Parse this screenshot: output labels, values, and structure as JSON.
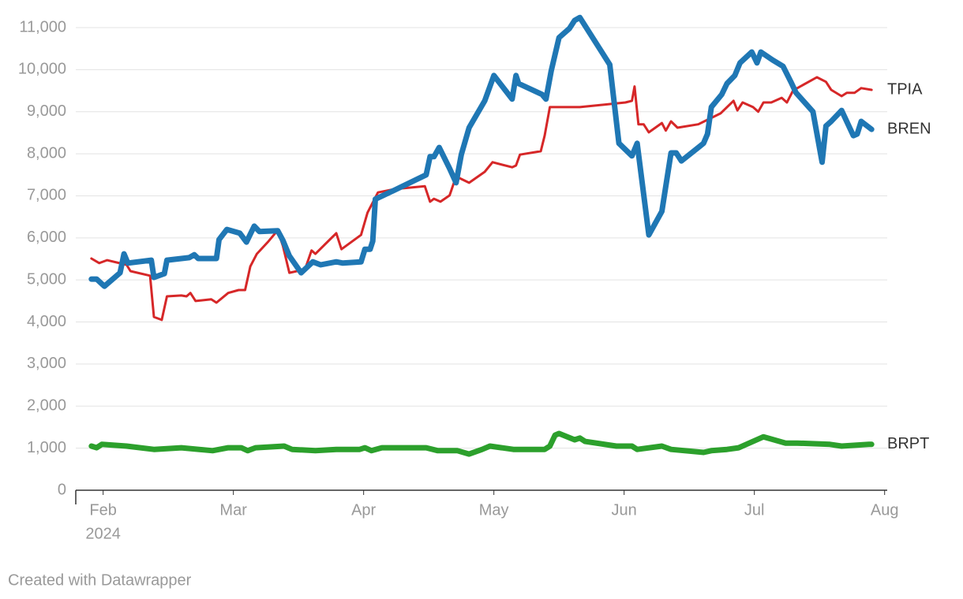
{
  "chart_data": {
    "type": "line",
    "xlim": [
      1.79,
      8.02
    ],
    "xticks": [
      {
        "value": 2,
        "label": "Feb"
      },
      {
        "value": 3,
        "label": "Mar"
      },
      {
        "value": 4,
        "label": "Apr"
      },
      {
        "value": 5,
        "label": "May"
      },
      {
        "value": 6,
        "label": "Jun"
      },
      {
        "value": 7,
        "label": "Jul"
      },
      {
        "value": 8,
        "label": "Aug"
      }
    ],
    "x_sublabel": "2024",
    "ylim": [
      0,
      11000
    ],
    "yticks": [
      0,
      {
        "value": 1000,
        "label": "1,000"
      },
      {
        "value": 2000,
        "label": "2,000"
      },
      {
        "value": 3000,
        "label": "3,000"
      },
      {
        "value": 4000,
        "label": "4,000"
      },
      {
        "value": 5000,
        "label": "5,000"
      },
      {
        "value": 6000,
        "label": "6,000"
      },
      {
        "value": 7000,
        "label": "7,000"
      },
      {
        "value": 8000,
        "label": "8,000"
      },
      {
        "value": 9000,
        "label": "9,000"
      },
      {
        "value": 10000,
        "label": "10,000"
      },
      {
        "value": 11000,
        "label": "11,000"
      }
    ],
    "grid": true,
    "footer": "Created with Datawrapper",
    "series": [
      {
        "name": "TPIA",
        "color": "#d62728",
        "width": 3,
        "x": [
          1.91,
          1.97,
          2.03,
          2.18,
          2.21,
          2.36,
          2.39,
          2.45,
          2.49,
          2.6,
          2.64,
          2.67,
          2.71,
          2.83,
          2.87,
          2.96,
          3.04,
          3.09,
          3.13,
          3.18,
          3.27,
          3.34,
          3.38,
          3.43,
          3.55,
          3.6,
          3.63,
          3.74,
          3.79,
          3.83,
          3.98,
          4.03,
          4.11,
          4.24,
          4.47,
          4.51,
          4.54,
          4.59,
          4.66,
          4.71,
          4.81,
          4.93,
          4.99,
          5.14,
          5.17,
          5.2,
          5.36,
          5.39,
          5.43,
          5.5,
          5.66,
          6.01,
          6.06,
          6.08,
          6.11,
          6.15,
          6.19,
          6.29,
          6.32,
          6.36,
          6.41,
          6.57,
          6.74,
          6.84,
          6.87,
          6.91,
          6.99,
          7.03,
          7.07,
          7.13,
          7.21,
          7.25,
          7.3,
          7.33,
          7.44,
          7.48,
          7.55,
          7.59,
          7.67,
          7.71,
          7.77,
          7.82,
          7.9
        ],
        "values": [
          5510,
          5400,
          5470,
          5360,
          5210,
          5100,
          4120,
          4050,
          4610,
          4630,
          4610,
          4690,
          4500,
          4540,
          4460,
          4690,
          4760,
          4760,
          5320,
          5620,
          5920,
          6180,
          5810,
          5170,
          5250,
          5700,
          5620,
          5960,
          6110,
          5730,
          6070,
          6600,
          7080,
          7160,
          7230,
          6860,
          6930,
          6860,
          7010,
          7460,
          7310,
          7570,
          7800,
          7680,
          7720,
          7980,
          8060,
          8430,
          9110,
          9110,
          9110,
          9220,
          9260,
          9600,
          8700,
          8700,
          8510,
          8730,
          8550,
          8770,
          8620,
          8700,
          8960,
          9260,
          9030,
          9220,
          9110,
          9000,
          9220,
          9220,
          9330,
          9220,
          9520,
          9560,
          9750,
          9820,
          9710,
          9520,
          9370,
          9450,
          9450,
          9560,
          9520
        ]
      },
      {
        "name": "BREN",
        "color": "#1f77b4",
        "width": 7,
        "x": [
          1.91,
          1.95,
          2.01,
          2.13,
          2.16,
          2.19,
          2.37,
          2.39,
          2.47,
          2.49,
          2.66,
          2.7,
          2.73,
          2.87,
          2.89,
          2.95,
          3.05,
          3.1,
          3.16,
          3.2,
          3.34,
          3.38,
          3.43,
          3.52,
          3.61,
          3.67,
          3.79,
          3.84,
          3.98,
          4.01,
          4.05,
          4.07,
          4.09,
          4.24,
          4.48,
          4.51,
          4.54,
          4.58,
          4.66,
          4.71,
          4.75,
          4.81,
          4.93,
          5.0,
          5.14,
          5.17,
          5.19,
          5.37,
          5.4,
          5.44,
          5.5,
          5.58,
          5.62,
          5.66,
          5.89,
          5.96,
          6.06,
          6.1,
          6.19,
          6.29,
          6.36,
          6.4,
          6.44,
          6.61,
          6.64,
          6.67,
          6.75,
          6.79,
          6.85,
          6.89,
          6.98,
          7.02,
          7.05,
          7.14,
          7.22,
          7.28,
          7.32,
          7.45,
          7.52,
          7.55,
          7.59,
          7.67,
          7.76,
          7.79,
          7.82,
          7.9
        ],
        "values": [
          5020,
          5020,
          4850,
          5170,
          5620,
          5400,
          5470,
          5060,
          5150,
          5470,
          5530,
          5600,
          5510,
          5510,
          5960,
          6200,
          6110,
          5900,
          6280,
          6150,
          6170,
          5940,
          5570,
          5170,
          5430,
          5360,
          5430,
          5400,
          5430,
          5730,
          5730,
          5920,
          6920,
          7140,
          7500,
          7930,
          7930,
          8150,
          7650,
          7310,
          7980,
          8620,
          9260,
          9860,
          9300,
          9860,
          9670,
          9410,
          9300,
          9970,
          10760,
          10980,
          11170,
          11240,
          10120,
          8250,
          7950,
          8250,
          6070,
          6630,
          8020,
          8020,
          7830,
          8250,
          8470,
          9110,
          9410,
          9670,
          9860,
          10160,
          10420,
          10160,
          10420,
          10230,
          10080,
          9710,
          9450,
          9000,
          7800,
          8660,
          8770,
          9030,
          8430,
          8470,
          8770,
          8580
        ]
      },
      {
        "name": "BRPT",
        "color": "#2ca02c",
        "width": 7,
        "x": [
          1.91,
          1.95,
          1.99,
          2.18,
          2.39,
          2.6,
          2.84,
          2.96,
          3.06,
          3.11,
          3.17,
          3.39,
          3.45,
          3.63,
          3.79,
          3.97,
          4.01,
          4.06,
          4.14,
          4.48,
          4.57,
          4.72,
          4.81,
          4.91,
          4.97,
          5.15,
          5.39,
          5.43,
          5.47,
          5.5,
          5.62,
          5.66,
          5.7,
          5.94,
          6.06,
          6.1,
          6.29,
          6.36,
          6.61,
          6.67,
          6.79,
          6.88,
          7.07,
          7.24,
          7.33,
          7.58,
          7.67,
          7.88,
          7.9
        ],
        "values": [
          1050,
          1010,
          1090,
          1050,
          970,
          1010,
          940,
          1010,
          1010,
          940,
          1010,
          1050,
          970,
          940,
          970,
          970,
          1010,
          940,
          1010,
          1010,
          940,
          940,
          860,
          970,
          1050,
          970,
          970,
          1050,
          1310,
          1350,
          1200,
          1240,
          1160,
          1050,
          1050,
          970,
          1050,
          970,
          900,
          940,
          970,
          1010,
          1270,
          1120,
          1120,
          1090,
          1050,
          1090,
          1090
        ]
      }
    ]
  }
}
